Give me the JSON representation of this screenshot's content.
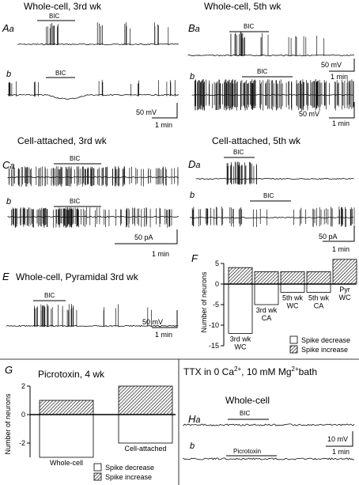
{
  "panels": {
    "whole_cell_3wk": {
      "title": "Whole-cell, 3rd wk",
      "label_a": "A",
      "label_a_sub": "a",
      "label_b": "b",
      "drug": "BIC",
      "scale_v": "50 mV",
      "scale_t": "1 min"
    },
    "whole_cell_5wk": {
      "title": "Whole-cell, 5th wk",
      "label_a": "B",
      "label_a_sub": "a",
      "label_b": "b",
      "drug": "BIC",
      "scale_v_a": "50 mV",
      "scale_t_a": "1 min",
      "scale_v_b": "50 mV",
      "scale_t_b": "1 min"
    },
    "cell_attached_3wk": {
      "title": "Cell-attached, 3rd wk",
      "label_a": "C",
      "label_a_sub": "a",
      "label_b": "b",
      "drug": "BIC",
      "scale_i": "50 pA",
      "scale_t": "1 min"
    },
    "cell_attached_5wk": {
      "title": "Cell-attached, 5th wk",
      "label_a": "D",
      "label_a_sub": "a",
      "label_b": "b",
      "drug": "BIC",
      "scale_i": "50 pA",
      "scale_t": "1 min"
    },
    "pyramidal": {
      "label": "E",
      "title": "Whole-cell, Pyramidal 3rd wk",
      "drug": "BIC",
      "scale_v": "50 mV",
      "scale_t": "1 min"
    },
    "summary_f": {
      "label": "F",
      "ylabel": "Number of neurons",
      "legend_decrease": "Spike decrease",
      "legend_increase": "Spike increase"
    },
    "picrotoxin": {
      "label": "G",
      "title": "Picrotoxin, 4 wk",
      "ylabel": "Number of neurons",
      "legend_decrease": "Spike decrease",
      "legend_increase": "Spike increase"
    },
    "ttx": {
      "title_pre": "TTX in 0 Ca",
      "title_sup": "2+",
      "title_post": ", 10 mM Mg",
      "title_sup2": "2+",
      "title_end": "bath",
      "subtitle": "Whole-cell",
      "label_a": "H",
      "label_a_sub": "a",
      "label_b": "b",
      "drug_a": "BIC",
      "drug_b": "Picrotoxin",
      "scale_v": "10 mV",
      "scale_t": "1 min"
    }
  },
  "chart_data": [
    {
      "type": "bar",
      "panel": "F",
      "categories": [
        "3rd wk WC",
        "3rd wk CA",
        "5th wk WC",
        "5th wk CA",
        "Pyr WC"
      ],
      "category_lines": [
        [
          "3rd wk",
          "WC"
        ],
        [
          "3rd wk",
          "CA"
        ],
        [
          "5th wk",
          "WC"
        ],
        [
          "5th wk",
          "CA"
        ],
        [
          "Pyr",
          "WC"
        ]
      ],
      "series": [
        {
          "name": "Spike increase",
          "values": [
            4,
            3,
            3,
            3,
            6
          ]
        },
        {
          "name": "Spike decrease",
          "values": [
            -12,
            -5,
            -2,
            -2,
            0
          ]
        }
      ],
      "ylabel": "Number of neurons",
      "ylim": [
        -15,
        5
      ],
      "yticks": [
        -15,
        -10,
        -5,
        0,
        5
      ]
    },
    {
      "type": "bar",
      "panel": "G",
      "title": "Picrotoxin, 4 wk",
      "categories": [
        "Whole-cell",
        "Cell-attached"
      ],
      "series": [
        {
          "name": "Spike increase",
          "values": [
            1,
            2
          ]
        },
        {
          "name": "Spike decrease",
          "values": [
            -3,
            -2
          ]
        }
      ],
      "ylabel": "Number of neurons",
      "ylim": [
        -3,
        2
      ],
      "yticks": [
        -2,
        0,
        2
      ]
    }
  ]
}
